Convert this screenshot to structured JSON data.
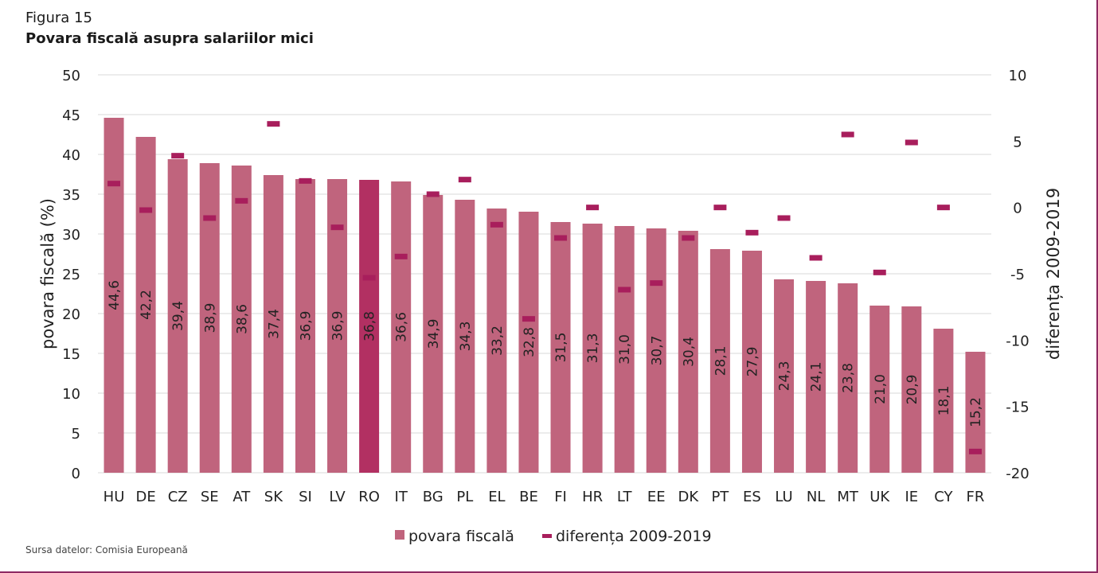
{
  "figure_label": "Figura 15",
  "title": "Povara fiscală asupra salariilor mici",
  "source": "Sursa datelor: Comisia Europeană",
  "colors": {
    "bar": "#c0647d",
    "bar_highlight": "#b23062",
    "marker": "#a81e5c",
    "grid": "#d9d9d9",
    "frame": "#8e2a63"
  },
  "chart_data": {
    "type": "bar",
    "categories": [
      "HU",
      "DE",
      "CZ",
      "SE",
      "AT",
      "SK",
      "SI",
      "LV",
      "RO",
      "IT",
      "BG",
      "PL",
      "EL",
      "BE",
      "FI",
      "HR",
      "LT",
      "EE",
      "DK",
      "PT",
      "ES",
      "LU",
      "NL",
      "MT",
      "UK",
      "IE",
      "CY",
      "FR"
    ],
    "series": [
      {
        "name": "povara fiscală",
        "axis": "left",
        "type": "bar",
        "values": [
          44.6,
          42.2,
          39.4,
          38.9,
          38.6,
          37.4,
          36.9,
          36.9,
          36.8,
          36.6,
          34.9,
          34.3,
          33.2,
          32.8,
          31.5,
          31.3,
          31.0,
          30.7,
          30.4,
          28.1,
          27.9,
          24.3,
          24.1,
          23.8,
          21.0,
          20.9,
          18.1,
          15.2
        ],
        "labels": [
          "44,6",
          "42,2",
          "39,4",
          "38,9",
          "38,6",
          "37,4",
          "36,9",
          "36,9",
          "36,8",
          "36,6",
          "34,9",
          "34,3",
          "33,2",
          "32,8",
          "31,5",
          "31,3",
          "31,0",
          "30,7",
          "30,4",
          "28,1",
          "27,9",
          "24,3",
          "24,1",
          "23,8",
          "21,0",
          "20,9",
          "18,1",
          "15,2"
        ]
      },
      {
        "name": "diferența 2009-2019",
        "axis": "right",
        "type": "marker",
        "values": [
          1.8,
          -0.2,
          3.9,
          -0.8,
          0.5,
          6.3,
          2.0,
          -1.5,
          -5.3,
          -3.7,
          1.0,
          2.1,
          -1.3,
          -8.4,
          -2.3,
          0.0,
          -6.2,
          -5.7,
          -2.3,
          0.0,
          -1.9,
          -0.8,
          -3.8,
          5.5,
          -4.9,
          4.9,
          0.0,
          -18.4
        ]
      }
    ],
    "highlight_category": "RO",
    "left_axis": {
      "title": "povara fiscală (%)",
      "min": 0,
      "max": 50,
      "ticks": [
        "0",
        "5",
        "10",
        "15",
        "20",
        "25",
        "30",
        "35",
        "40",
        "45",
        "50"
      ]
    },
    "right_axis": {
      "title": "diferența 2009-2019",
      "min": -20,
      "max": 10,
      "ticks": [
        "-20",
        "-15",
        "-10",
        "-5",
        "0",
        "5",
        "10"
      ]
    },
    "legend": {
      "position": "bottom",
      "items": [
        "povara fiscală",
        "diferența 2009-2019"
      ]
    },
    "grid": true
  }
}
